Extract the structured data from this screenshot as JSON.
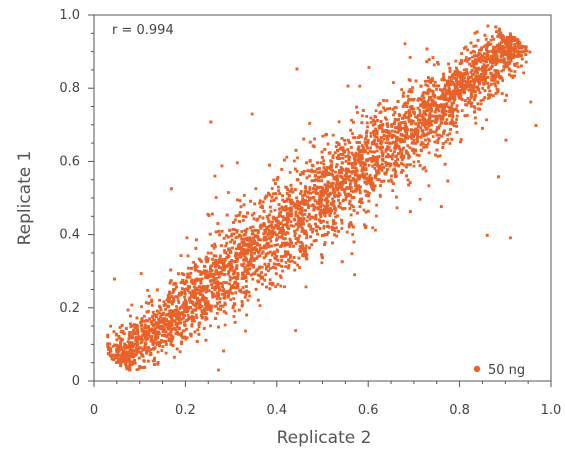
{
  "chart_data": {
    "type": "scatter",
    "title": "",
    "xlabel": "Replicate 2",
    "ylabel": "Replicate 1",
    "xlim": [
      0,
      1.0
    ],
    "ylim": [
      0,
      1.0
    ],
    "xticks": [
      0,
      0.2,
      0.4,
      0.6,
      0.8,
      1.0
    ],
    "xtick_labels": [
      "0",
      "0.2",
      "0.4",
      "0.6",
      "0.8",
      "1.0"
    ],
    "yticks": [
      0,
      0.2,
      0.4,
      0.6,
      0.8,
      1.0
    ],
    "ytick_labels": [
      "0",
      "0.2",
      "0.4",
      "0.6",
      "0.8",
      "1.0"
    ],
    "grid": false,
    "legend_position": "bottom-right",
    "annotation": "r = 0.994",
    "series": [
      {
        "name": "50 ng",
        "color": "#e8622a",
        "x_range": [
          0.03,
          0.97
        ],
        "y_range": [
          0.03,
          0.97
        ],
        "correlation": 0.994
      }
    ]
  }
}
